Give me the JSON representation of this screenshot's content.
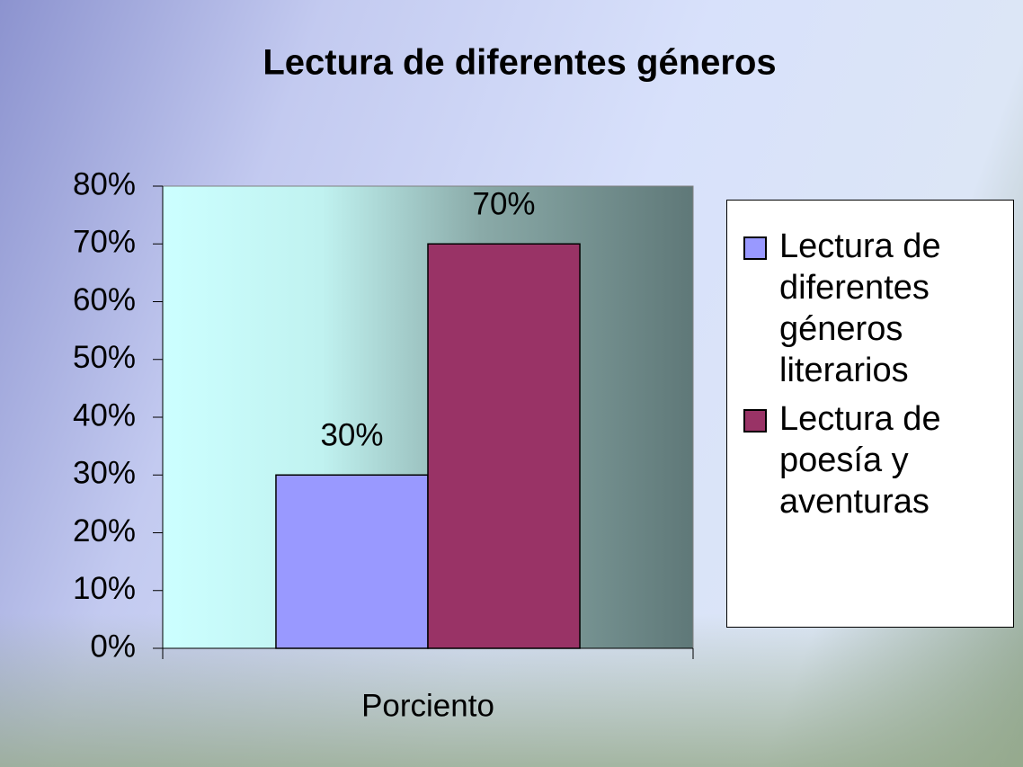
{
  "chart_data": {
    "type": "bar",
    "title": "Lectura de diferentes géneros",
    "categories": [
      "Porciento"
    ],
    "series": [
      {
        "name": "Lectura de diferentes géneros literarios",
        "color": "#9999ff",
        "values": [
          30
        ],
        "value_labels": [
          "30%"
        ]
      },
      {
        "name": "Lectura de poesía y aventuras",
        "color": "#993366",
        "values": [
          70
        ],
        "value_labels": [
          "70%"
        ]
      }
    ],
    "ylim": [
      0,
      80
    ],
    "yticks": [
      {
        "value": 0,
        "label": "0%"
      },
      {
        "value": 10,
        "label": "10%"
      },
      {
        "value": 20,
        "label": "20%"
      },
      {
        "value": 30,
        "label": "30%"
      },
      {
        "value": 40,
        "label": "40%"
      },
      {
        "value": 50,
        "label": "50%"
      },
      {
        "value": 60,
        "label": "60%"
      },
      {
        "value": 70,
        "label": "70%"
      },
      {
        "value": 80,
        "label": "80%"
      }
    ],
    "legend": "right"
  }
}
